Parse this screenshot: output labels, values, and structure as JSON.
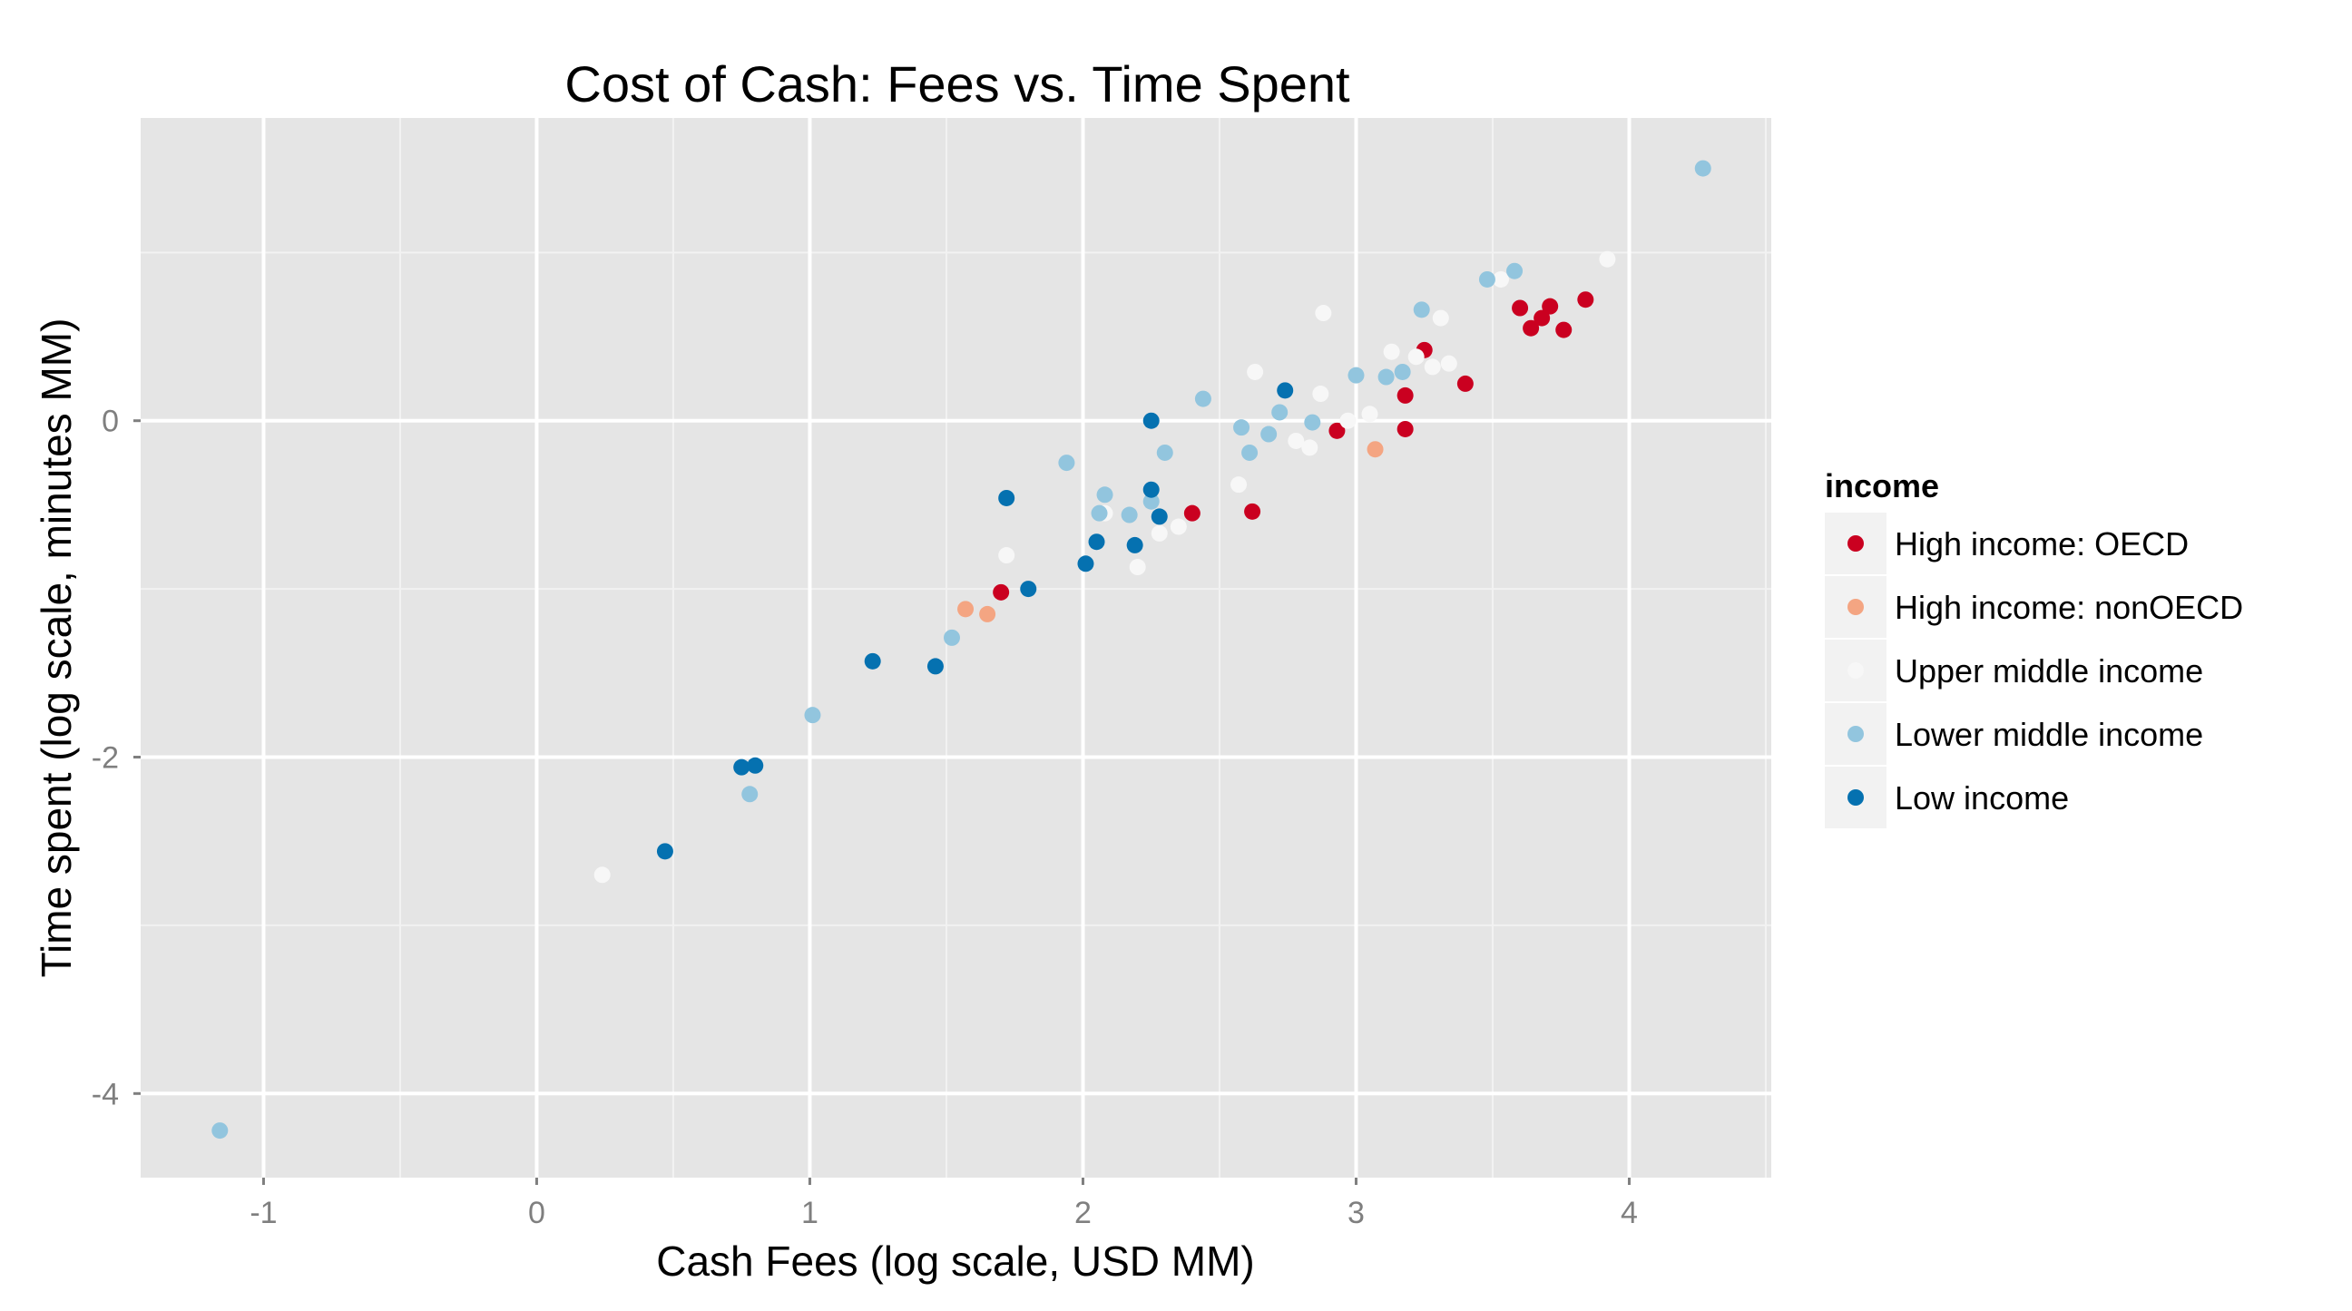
{
  "chart_data": {
    "type": "scatter",
    "title": "Cost of Cash: Fees vs. Time Spent",
    "xlabel": "Cash Fees (log scale, USD MM)",
    "ylabel": "Time spent (log scale, minutes MM)",
    "xlim": [
      -1.45,
      4.52
    ],
    "ylim": [
      -4.5,
      1.8
    ],
    "x_ticks": [
      -1,
      0,
      1,
      2,
      3,
      4
    ],
    "y_ticks": [
      -4,
      -2,
      0
    ],
    "grid": true,
    "background_color": "#e5e5e5",
    "legend": {
      "title": "income",
      "placement": "right"
    },
    "series": [
      {
        "name": "High income: OECD",
        "color": "#ca0020",
        "points": [
          [
            1.7,
            -1.02
          ],
          [
            2.4,
            -0.55
          ],
          [
            2.62,
            -0.54
          ],
          [
            2.93,
            -0.06
          ],
          [
            3.18,
            -0.05
          ],
          [
            3.18,
            0.15
          ],
          [
            3.25,
            0.42
          ],
          [
            3.4,
            0.22
          ],
          [
            3.6,
            0.67
          ],
          [
            3.64,
            0.55
          ],
          [
            3.68,
            0.61
          ],
          [
            3.71,
            0.68
          ],
          [
            3.76,
            0.54
          ],
          [
            3.84,
            0.72
          ]
        ]
      },
      {
        "name": "High income: nonOECD",
        "color": "#f4a582",
        "points": [
          [
            1.57,
            -1.12
          ],
          [
            1.65,
            -1.15
          ],
          [
            3.07,
            -0.17
          ]
        ]
      },
      {
        "name": "Upper middle income",
        "color": "#f7f7f7",
        "points": [
          [
            0.24,
            -2.7
          ],
          [
            1.72,
            -0.8
          ],
          [
            2.08,
            -0.55
          ],
          [
            2.2,
            -0.87
          ],
          [
            2.28,
            -0.67
          ],
          [
            2.35,
            -0.63
          ],
          [
            2.57,
            -0.38
          ],
          [
            2.63,
            0.29
          ],
          [
            2.78,
            -0.12
          ],
          [
            2.83,
            -0.16
          ],
          [
            2.87,
            0.16
          ],
          [
            2.88,
            0.64
          ],
          [
            2.97,
            0.0
          ],
          [
            3.05,
            0.04
          ],
          [
            3.13,
            0.41
          ],
          [
            3.22,
            0.38
          ],
          [
            3.28,
            0.32
          ],
          [
            3.31,
            0.61
          ],
          [
            3.34,
            0.34
          ],
          [
            3.53,
            0.84
          ],
          [
            3.92,
            0.96
          ]
        ]
      },
      {
        "name": "Lower middle income",
        "color": "#92c5de",
        "points": [
          [
            -1.16,
            -4.22
          ],
          [
            0.78,
            -2.22
          ],
          [
            1.01,
            -1.75
          ],
          [
            1.52,
            -1.29
          ],
          [
            1.94,
            -0.25
          ],
          [
            2.06,
            -0.55
          ],
          [
            2.08,
            -0.44
          ],
          [
            2.17,
            -0.56
          ],
          [
            2.25,
            -0.48
          ],
          [
            2.3,
            -0.19
          ],
          [
            2.44,
            0.13
          ],
          [
            2.58,
            -0.04
          ],
          [
            2.61,
            -0.19
          ],
          [
            2.68,
            -0.08
          ],
          [
            2.72,
            0.05
          ],
          [
            2.84,
            -0.01
          ],
          [
            3.0,
            0.27
          ],
          [
            3.11,
            0.26
          ],
          [
            3.17,
            0.29
          ],
          [
            3.24,
            0.66
          ],
          [
            3.48,
            0.84
          ],
          [
            3.58,
            0.89
          ],
          [
            4.27,
            1.5
          ]
        ]
      },
      {
        "name": "Low income",
        "color": "#0571b0",
        "points": [
          [
            0.47,
            -2.56
          ],
          [
            0.75,
            -2.06
          ],
          [
            0.8,
            -2.05
          ],
          [
            1.23,
            -1.43
          ],
          [
            1.46,
            -1.46
          ],
          [
            1.72,
            -0.46
          ],
          [
            1.8,
            -1.0
          ],
          [
            2.01,
            -0.85
          ],
          [
            2.05,
            -0.72
          ],
          [
            2.19,
            -0.74
          ],
          [
            2.25,
            0.0
          ],
          [
            2.25,
            -0.41
          ],
          [
            2.28,
            -0.57
          ],
          [
            2.74,
            0.18
          ]
        ]
      }
    ]
  }
}
